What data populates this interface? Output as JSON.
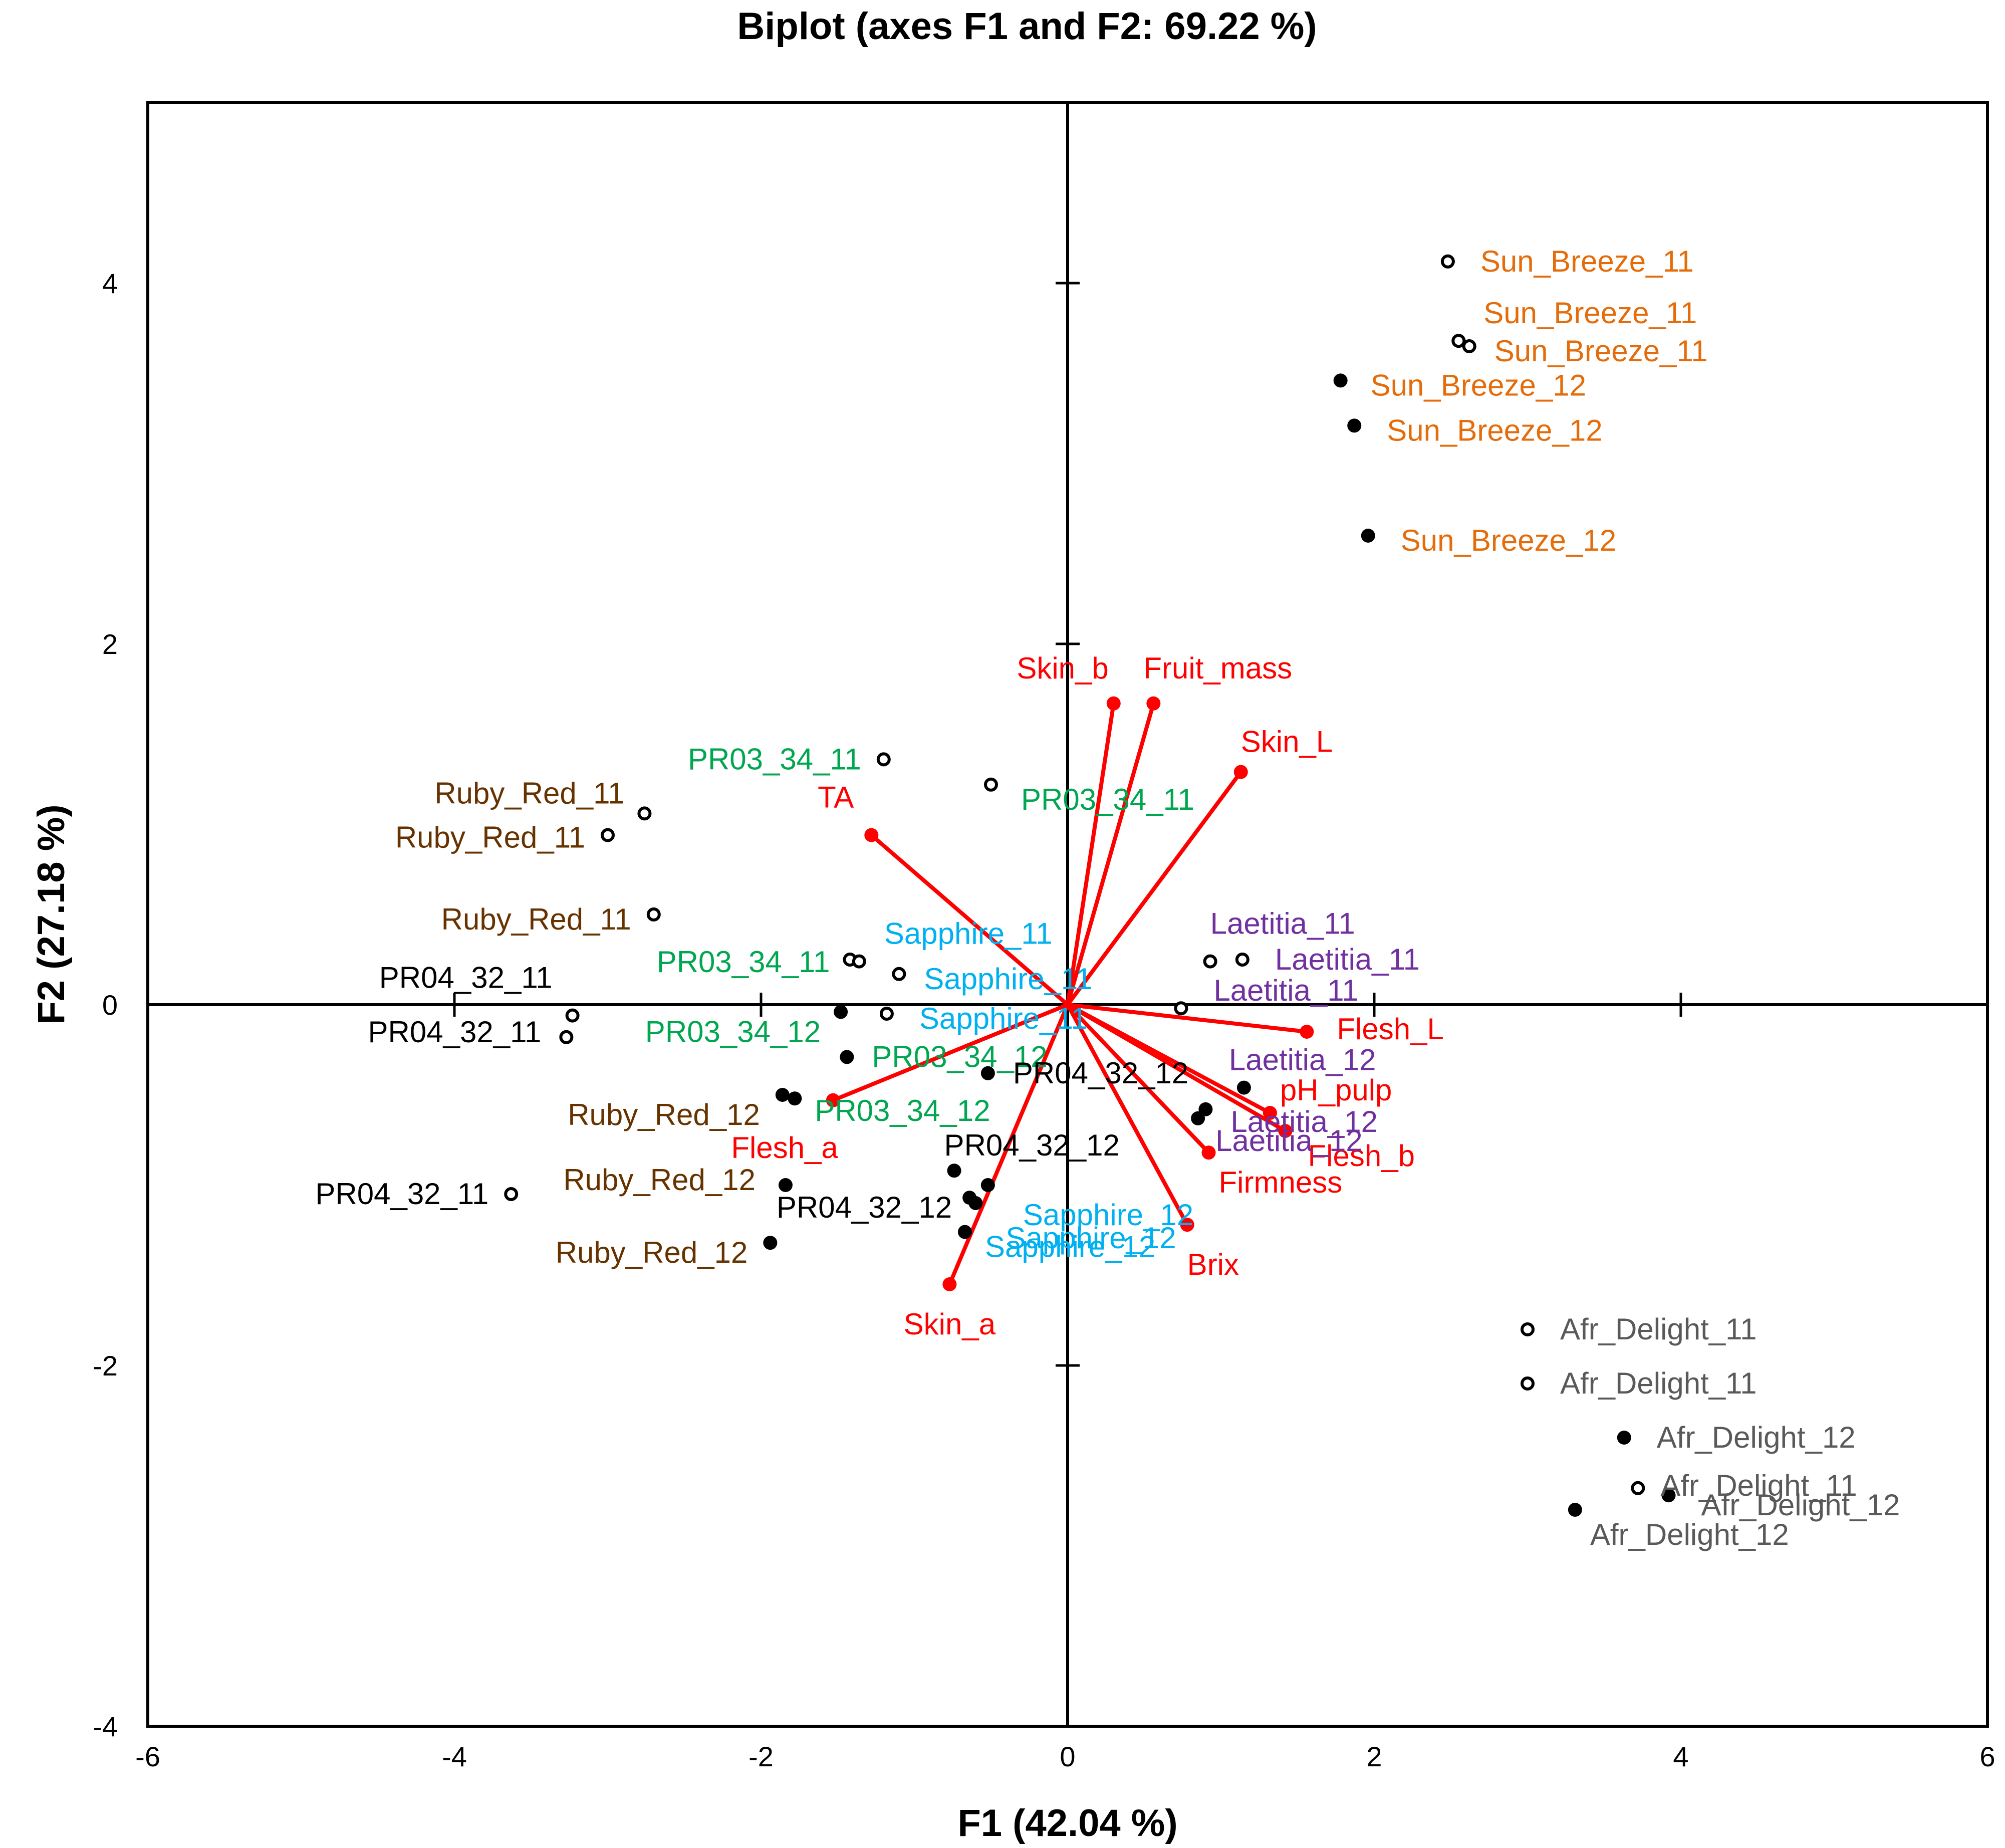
{
  "chart_data": {
    "type": "scatter",
    "title": "Biplot (axes F1 and F2: 69.22 %)",
    "xlabel": "F1 (42.04 %)",
    "ylabel": "F2 (27.18 %)",
    "xlim": [
      -6,
      6
    ],
    "ylim": [
      -4,
      5
    ],
    "xticks": [
      -6,
      -4,
      -2,
      0,
      2,
      4,
      6
    ],
    "yticks": [
      -4,
      -2,
      0,
      2,
      4
    ],
    "grid": false,
    "colors": {
      "Sun_Breeze": "#e46c0a",
      "Ruby_Red": "#663300",
      "PR03_34": "#00a650",
      "PR04_32": "#000000",
      "Sapphire": "#00b0f0",
      "Laetitia": "#7030a0",
      "Afr_Delight": "#595959",
      "variables": "#ff0000"
    },
    "observations": [
      {
        "label": "Sun_Breeze_11",
        "group": "Sun_Breeze",
        "filled": false,
        "x": 2.48,
        "y": 4.12
      },
      {
        "label": "Sun_Breeze_11",
        "group": "Sun_Breeze",
        "filled": false,
        "x": 2.55,
        "y": 3.68
      },
      {
        "label": "Sun_Breeze_11",
        "group": "Sun_Breeze",
        "filled": false,
        "x": 2.62,
        "y": 3.65
      },
      {
        "label": "Sun_Breeze_12",
        "group": "Sun_Breeze",
        "filled": true,
        "x": 1.78,
        "y": 3.46
      },
      {
        "label": "Sun_Breeze_12",
        "group": "Sun_Breeze",
        "filled": true,
        "x": 1.87,
        "y": 3.21
      },
      {
        "label": "Sun_Breeze_12",
        "group": "Sun_Breeze",
        "filled": true,
        "x": 1.96,
        "y": 2.6
      },
      {
        "label": "Ruby_Red_11",
        "group": "Ruby_Red",
        "filled": false,
        "x": -2.76,
        "y": 1.06
      },
      {
        "label": "Ruby_Red_11",
        "group": "Ruby_Red",
        "filled": false,
        "x": -3.0,
        "y": 0.94
      },
      {
        "label": "Ruby_Red_11",
        "group": "Ruby_Red",
        "filled": false,
        "x": -2.7,
        "y": 0.5
      },
      {
        "label": "Ruby_Red_12",
        "group": "Ruby_Red",
        "filled": true,
        "x": -1.86,
        "y": -0.5
      },
      {
        "label": "Ruby_Red_12",
        "group": "Ruby_Red",
        "filled": true,
        "x": -1.84,
        "y": -1.0
      },
      {
        "label": "Ruby_Red_12",
        "group": "Ruby_Red",
        "filled": true,
        "x": -1.94,
        "y": -1.32
      },
      {
        "label": "PR03_34_11",
        "group": "PR03_34",
        "filled": false,
        "x": -1.2,
        "y": 1.36
      },
      {
        "label": "PR03_34_11",
        "group": "PR03_34",
        "filled": false,
        "x": -0.5,
        "y": 1.22
      },
      {
        "label": "PR03_34_11",
        "group": "PR03_34",
        "filled": false,
        "x": -1.42,
        "y": 0.25
      },
      {
        "label": "PR03_34_12",
        "group": "PR03_34",
        "filled": true,
        "x": -1.48,
        "y": -0.04
      },
      {
        "label": "PR03_34_12",
        "group": "PR03_34",
        "filled": true,
        "x": -1.44,
        "y": -0.29
      },
      {
        "label": "PR03_34_12",
        "group": "PR03_34",
        "filled": true,
        "x": -1.78,
        "y": -0.52
      },
      {
        "label": "PR04_32_11",
        "group": "PR04_32",
        "filled": false,
        "x": -3.23,
        "y": -0.06
      },
      {
        "label": "PR04_32_11",
        "group": "PR04_32",
        "filled": false,
        "x": -3.27,
        "y": -0.18
      },
      {
        "label": "PR04_32_11",
        "group": "PR04_32",
        "filled": false,
        "x": -3.63,
        "y": -1.05
      },
      {
        "label": "PR04_32_12",
        "group": "PR04_32",
        "filled": true,
        "x": -0.52,
        "y": -0.38
      },
      {
        "label": "PR04_32_12",
        "group": "PR04_32",
        "filled": true,
        "x": -0.74,
        "y": -0.92
      },
      {
        "label": "PR04_32_12",
        "group": "PR04_32",
        "filled": true,
        "x": -0.64,
        "y": -1.07
      },
      {
        "label": "Sapphire_11",
        "group": "Sapphire",
        "filled": false,
        "x": -1.36,
        "y": 0.24
      },
      {
        "label": "Sapphire_11",
        "group": "Sapphire",
        "filled": false,
        "x": -1.1,
        "y": 0.17
      },
      {
        "label": "Sapphire_11",
        "group": "Sapphire",
        "filled": false,
        "x": -1.18,
        "y": -0.05
      },
      {
        "label": "Sapphire_12",
        "group": "Sapphire",
        "filled": true,
        "x": -0.52,
        "y": -1.0
      },
      {
        "label": "Sapphire_12",
        "group": "Sapphire",
        "filled": true,
        "x": -0.6,
        "y": -1.1
      },
      {
        "label": "Sapphire_12",
        "group": "Sapphire",
        "filled": true,
        "x": -0.67,
        "y": -1.26
      },
      {
        "label": "Laetitia_11",
        "group": "Laetitia",
        "filled": false,
        "x": 0.93,
        "y": 0.24
      },
      {
        "label": "Laetitia_11",
        "group": "Laetitia",
        "filled": false,
        "x": 1.14,
        "y": 0.25
      },
      {
        "label": "Laetitia_11",
        "group": "Laetitia",
        "filled": false,
        "x": 0.74,
        "y": -0.02
      },
      {
        "label": "Laetitia_12",
        "group": "Laetitia",
        "filled": true,
        "x": 1.15,
        "y": -0.46
      },
      {
        "label": "Laetitia_12",
        "group": "Laetitia",
        "filled": true,
        "x": 0.9,
        "y": -0.58
      },
      {
        "label": "Laetitia_12",
        "group": "Laetitia",
        "filled": true,
        "x": 0.85,
        "y": -0.63
      },
      {
        "label": "Afr_Delight_11",
        "group": "Afr_Delight",
        "filled": false,
        "x": 3.0,
        "y": -1.8
      },
      {
        "label": "Afr_Delight_11",
        "group": "Afr_Delight",
        "filled": false,
        "x": 3.0,
        "y": -2.1
      },
      {
        "label": "Afr_Delight_11",
        "group": "Afr_Delight",
        "filled": false,
        "x": 3.72,
        "y": -2.68
      },
      {
        "label": "Afr_Delight_12",
        "group": "Afr_Delight",
        "filled": true,
        "x": 3.63,
        "y": -2.4
      },
      {
        "label": "Afr_Delight_12",
        "group": "Afr_Delight",
        "filled": true,
        "x": 3.92,
        "y": -2.72
      },
      {
        "label": "Afr_Delight_12",
        "group": "Afr_Delight",
        "filled": true,
        "x": 3.31,
        "y": -2.8
      }
    ],
    "variables": [
      {
        "label": "Skin_b",
        "x": 0.3,
        "y": 1.67
      },
      {
        "label": "Fruit_mass",
        "x": 0.56,
        "y": 1.67
      },
      {
        "label": "Skin_L",
        "x": 1.13,
        "y": 1.29
      },
      {
        "label": "TA",
        "x": -1.28,
        "y": 0.94
      },
      {
        "label": "Flesh_L",
        "x": 1.56,
        "y": -0.15
      },
      {
        "label": "pH_pulp",
        "x": 1.32,
        "y": -0.6
      },
      {
        "label": "Flesh_b",
        "x": 1.42,
        "y": -0.7
      },
      {
        "label": "Firmness",
        "x": 0.92,
        "y": -0.82
      },
      {
        "label": "Brix",
        "x": 0.78,
        "y": -1.22
      },
      {
        "label": "Flesh_a",
        "x": -1.53,
        "y": -0.53
      },
      {
        "label": "Skin_a",
        "x": -0.77,
        "y": -1.55
      }
    ]
  }
}
